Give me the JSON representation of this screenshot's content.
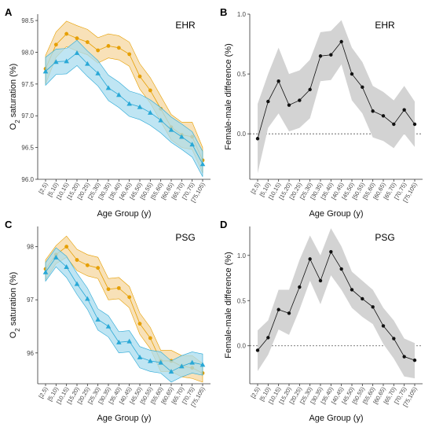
{
  "categories": [
    "[2,5)",
    "[5,10)",
    "[10,15)",
    "[15,20)",
    "[20,25)",
    "[25,30)",
    "[30,35)",
    "[35,40)",
    "[40,45)",
    "[45,50)",
    "[50,55)",
    "[55,60)",
    "[60,65)",
    "[65,70)",
    "[70,75)",
    "[75,105)"
  ],
  "colors": {
    "female": "#E69F00",
    "female_band": "#F6D7A0",
    "male": "#29A8D6",
    "male_band": "#A9DCEF",
    "diff": "#111111",
    "diff_band": "#D3D3D3",
    "axis": "#333333"
  },
  "chart_data": [
    {
      "panel": "A",
      "type": "line",
      "label": "EHR",
      "xlabel": "Age Group (y)",
      "ylabel": "O2 saturation (%)",
      "ylabel_main": "O",
      "ylabel_sub": "2",
      "ylabel_rest": " saturation (%)",
      "ylim": [
        96.0,
        98.6
      ],
      "yticks": [
        96.0,
        96.5,
        97.0,
        97.5,
        98.0,
        98.5
      ],
      "yticklabels": [
        "96.0",
        "96.5",
        "97.0",
        "97.5",
        "98.0",
        "98.5"
      ],
      "grid": false,
      "series": [
        {
          "marker": "circle",
          "color_key": "female",
          "values": [
            97.74,
            98.12,
            98.29,
            98.22,
            98.16,
            98.03,
            98.1,
            98.07,
            97.97,
            97.62,
            97.4,
            97.11,
            96.82,
            96.7,
            96.67,
            96.3
          ],
          "upper": [
            97.95,
            98.32,
            98.49,
            98.42,
            98.36,
            98.23,
            98.29,
            98.26,
            98.16,
            97.82,
            97.6,
            97.31,
            97.02,
            96.9,
            96.9,
            96.5
          ],
          "lower": [
            97.5,
            97.92,
            98.09,
            98.02,
            97.96,
            97.83,
            97.91,
            97.88,
            97.78,
            97.42,
            97.2,
            96.91,
            96.62,
            96.5,
            96.47,
            96.1
          ]
        },
        {
          "marker": "triangle",
          "color_key": "male",
          "values": [
            97.7,
            97.85,
            97.86,
            97.99,
            97.82,
            97.67,
            97.44,
            97.33,
            97.19,
            97.14,
            97.05,
            96.93,
            96.78,
            96.67,
            96.55,
            96.24
          ],
          "upper": [
            97.92,
            98.05,
            98.06,
            98.19,
            98.02,
            97.87,
            97.64,
            97.53,
            97.39,
            97.34,
            97.25,
            97.13,
            96.98,
            96.87,
            96.75,
            96.44
          ],
          "lower": [
            97.48,
            97.65,
            97.66,
            97.79,
            97.62,
            97.47,
            97.24,
            97.13,
            96.99,
            96.94,
            96.85,
            96.73,
            96.58,
            96.47,
            96.35,
            96.04
          ]
        }
      ]
    },
    {
      "panel": "B",
      "type": "line",
      "label": "EHR",
      "xlabel": "Age Group (y)",
      "ylabel": "Female-male difference (%)",
      "ylim": [
        -0.38,
        1.0
      ],
      "yticks": [
        0.0,
        0.5,
        1.0
      ],
      "yticklabels": [
        "0.0",
        "0.5",
        "1.0"
      ],
      "reference_line": 0,
      "grid": false,
      "series": [
        {
          "marker": "circle",
          "color_key": "diff",
          "values": [
            -0.04,
            0.27,
            0.44,
            0.24,
            0.28,
            0.37,
            0.65,
            0.66,
            0.77,
            0.5,
            0.39,
            0.19,
            0.15,
            0.08,
            0.2,
            0.08
          ],
          "upper": [
            0.25,
            0.5,
            0.72,
            0.5,
            0.53,
            0.62,
            0.85,
            0.86,
            0.95,
            0.72,
            0.6,
            0.4,
            0.35,
            0.28,
            0.4,
            0.27
          ],
          "lower": [
            -0.33,
            0.05,
            0.17,
            0.02,
            0.05,
            0.13,
            0.44,
            0.45,
            0.58,
            0.28,
            0.17,
            -0.03,
            -0.06,
            -0.12,
            0.0,
            -0.11
          ]
        }
      ]
    },
    {
      "panel": "C",
      "type": "line",
      "label": "PSG",
      "xlabel": "Age Group (y)",
      "ylabel": "O2 saturation (%)",
      "ylabel_main": "O",
      "ylabel_sub": "2",
      "ylabel_rest": " saturation (%)",
      "ylim": [
        95.42,
        98.38
      ],
      "yticks": [
        96,
        97,
        98
      ],
      "yticklabels": [
        "96",
        "97",
        "98"
      ],
      "grid": false,
      "series": [
        {
          "marker": "circle",
          "color_key": "female",
          "values": [
            97.58,
            97.85,
            98.0,
            97.75,
            97.65,
            97.6,
            97.2,
            97.22,
            97.05,
            96.55,
            96.28,
            95.85,
            95.85,
            95.75,
            95.72,
            95.62
          ],
          "upper": [
            97.75,
            98.02,
            98.2,
            97.95,
            97.85,
            97.8,
            97.4,
            97.42,
            97.25,
            96.75,
            96.48,
            96.05,
            96.05,
            95.95,
            95.95,
            95.8
          ],
          "lower": [
            97.38,
            97.68,
            97.8,
            97.55,
            97.45,
            97.4,
            97.0,
            97.02,
            96.85,
            96.35,
            96.08,
            95.65,
            95.65,
            95.55,
            95.52,
            95.45
          ]
        },
        {
          "marker": "triangle",
          "color_key": "male",
          "values": [
            97.52,
            97.8,
            97.62,
            97.3,
            97.02,
            96.63,
            96.5,
            96.2,
            96.22,
            95.92,
            95.85,
            95.82,
            95.65,
            95.75,
            95.82,
            95.78
          ],
          "upper": [
            97.7,
            97.98,
            97.82,
            97.5,
            97.22,
            96.83,
            96.7,
            96.4,
            96.42,
            96.12,
            96.05,
            96.02,
            95.85,
            95.95,
            96.02,
            95.98
          ],
          "lower": [
            97.35,
            97.62,
            97.42,
            97.1,
            96.82,
            96.43,
            96.3,
            96.0,
            96.02,
            95.72,
            95.65,
            95.62,
            95.45,
            95.55,
            95.62,
            95.58
          ]
        }
      ]
    },
    {
      "panel": "D",
      "type": "line",
      "label": "PSG",
      "xlabel": "Age Group (y)",
      "ylabel": "Female-male difference (%)",
      "ylim": [
        -0.42,
        1.32
      ],
      "yticks": [
        0.0,
        0.5,
        1.0
      ],
      "yticklabels": [
        "0.0",
        "0.5",
        "1.0"
      ],
      "reference_line": 0,
      "grid": false,
      "series": [
        {
          "marker": "circle",
          "color_key": "diff",
          "values": [
            -0.05,
            0.09,
            0.4,
            0.36,
            0.65,
            0.96,
            0.72,
            1.04,
            0.85,
            0.62,
            0.52,
            0.43,
            0.22,
            0.08,
            -0.12,
            -0.16
          ],
          "upper": [
            0.17,
            0.28,
            0.62,
            0.62,
            0.95,
            1.22,
            1.0,
            1.3,
            1.1,
            0.82,
            0.72,
            0.62,
            0.42,
            0.28,
            0.08,
            0.03
          ],
          "lower": [
            -0.28,
            -0.1,
            0.18,
            0.12,
            0.4,
            0.72,
            0.46,
            0.78,
            0.62,
            0.42,
            0.32,
            0.24,
            0.02,
            -0.14,
            -0.34,
            -0.36
          ]
        }
      ]
    }
  ]
}
